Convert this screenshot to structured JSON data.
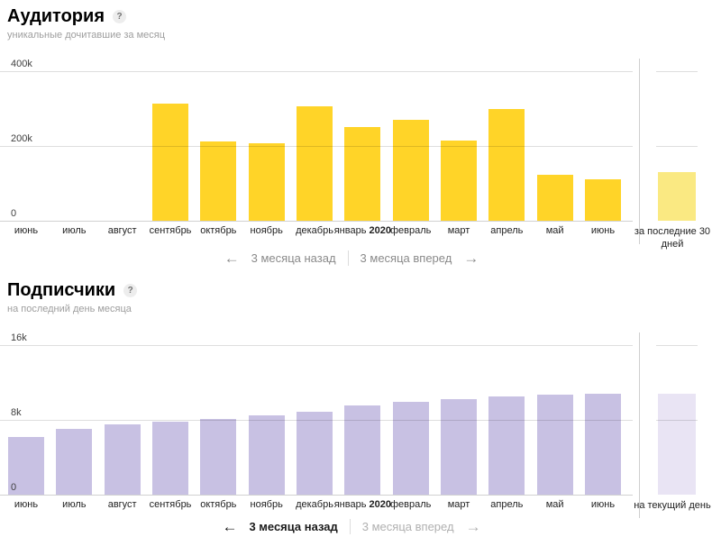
{
  "sections": [
    {
      "title": "Аудитория",
      "help_icon": "?",
      "subtitle": "уникальные дочитавшие за месяц",
      "nav": {
        "back_arrow": "←",
        "back_label": "3 месяца назад",
        "forward_label": "3 месяца вперед",
        "forward_arrow": "→"
      }
    },
    {
      "title": "Подписчики",
      "help_icon": "?",
      "subtitle": "на последний день месяца",
      "nav": {
        "back_arrow": "←",
        "back_label": "3 месяца назад",
        "forward_label": "3 месяца вперед",
        "forward_arrow": "→"
      }
    }
  ],
  "chart_data": [
    {
      "type": "bar",
      "title": "Аудитория",
      "subtitle": "уникальные дочитавшие за месяц",
      "categories": [
        "июнь",
        "июль",
        "август",
        "сентябрь",
        "октябрь",
        "ноябрь",
        "декабрь",
        "январь 2020",
        "февраль",
        "март",
        "апрель",
        "май",
        "июнь"
      ],
      "values": [
        0,
        0,
        0,
        314000,
        212000,
        207000,
        307000,
        250000,
        271000,
        214000,
        298000,
        124000,
        110000
      ],
      "extra": {
        "label": "за последние 30 дней",
        "value": 131000
      },
      "yticks": [
        "400k",
        "200k",
        "0"
      ],
      "ylim": [
        0,
        400000
      ],
      "grid": true,
      "legend": false,
      "bar_color": "#FFD428",
      "extra_bar_color": "#FAE982"
    },
    {
      "type": "bar",
      "title": "Подписчики",
      "subtitle": "на последний день месяца",
      "categories": [
        "июнь",
        "июль",
        "август",
        "сентябрь",
        "октябрь",
        "ноябрь",
        "декабрь",
        "январь 2020",
        "февраль",
        "март",
        "апрель",
        "май",
        "июнь"
      ],
      "values": [
        6200,
        7000,
        7500,
        7800,
        8100,
        8500,
        8900,
        9500,
        9900,
        10200,
        10500,
        10700,
        10800
      ],
      "extra": {
        "label": "на текущий день",
        "value": 10800
      },
      "yticks": [
        "16k",
        "8k",
        "0"
      ],
      "ylim": [
        0,
        16000
      ],
      "grid": true,
      "legend": false,
      "bar_color": "#C8C1E3",
      "extra_bar_color": "#E9E4F4"
    }
  ]
}
